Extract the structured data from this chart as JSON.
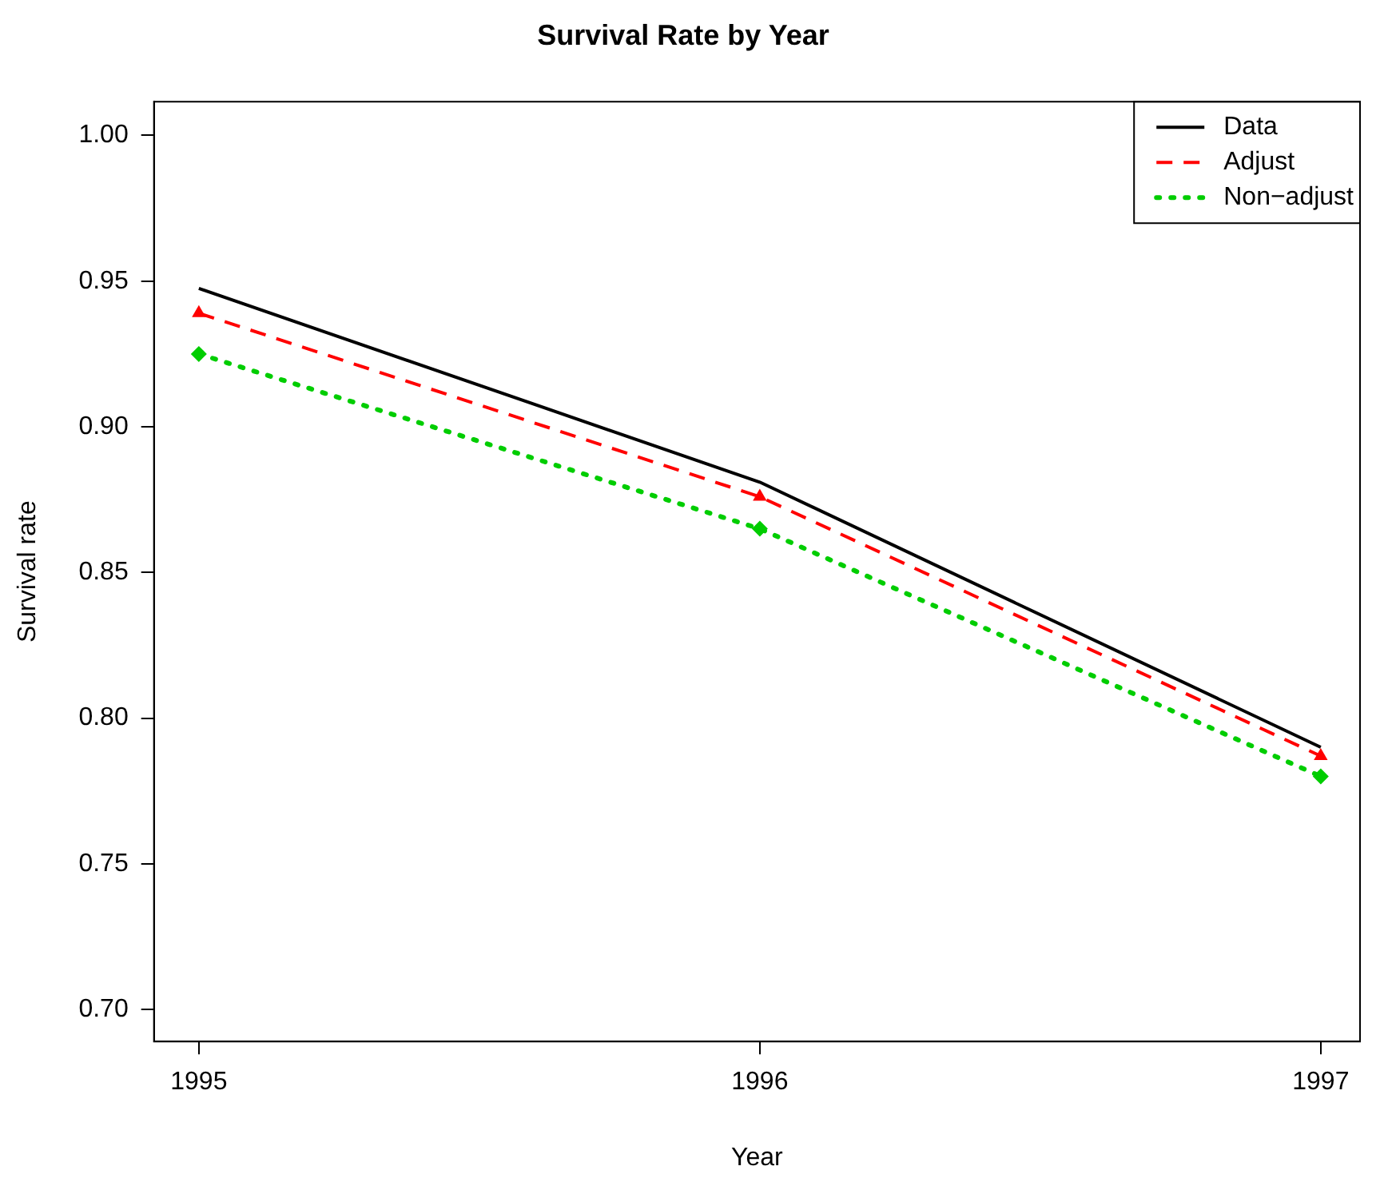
{
  "chart_data": {
    "type": "line",
    "title": "Survival Rate by Year",
    "xlabel": "Year",
    "ylabel": "Survival rate",
    "x": [
      1995,
      1996,
      1997
    ],
    "series": [
      {
        "name": "Data",
        "color": "#000000",
        "values": [
          0.9475,
          0.881,
          0.79
        ],
        "line_style": "solid",
        "marker": "none"
      },
      {
        "name": "Adjust",
        "color": "#ff0000",
        "values": [
          0.939,
          0.876,
          0.787
        ],
        "line_style": "dashed",
        "marker": "triangle"
      },
      {
        "name": "Non−adjust",
        "color": "#00cd00",
        "values": [
          0.925,
          0.865,
          0.78
        ],
        "line_style": "dotted",
        "marker": "diamond"
      }
    ],
    "xlim": [
      1994.92,
      1997.07
    ],
    "xticks": [
      1995,
      1996,
      1997
    ],
    "ylim": [
      0.689,
      1.0116
    ],
    "yticks": [
      {
        "value": 0.7,
        "label": "0.70"
      },
      {
        "value": 0.75,
        "label": "0.75"
      },
      {
        "value": 0.8,
        "label": "0.80"
      },
      {
        "value": 0.85,
        "label": "0.85"
      },
      {
        "value": 0.9,
        "label": "0.90"
      },
      {
        "value": 0.95,
        "label": "0.95"
      },
      {
        "value": 1,
        "label": "1.00"
      }
    ],
    "grid": false,
    "legend": "top right"
  }
}
